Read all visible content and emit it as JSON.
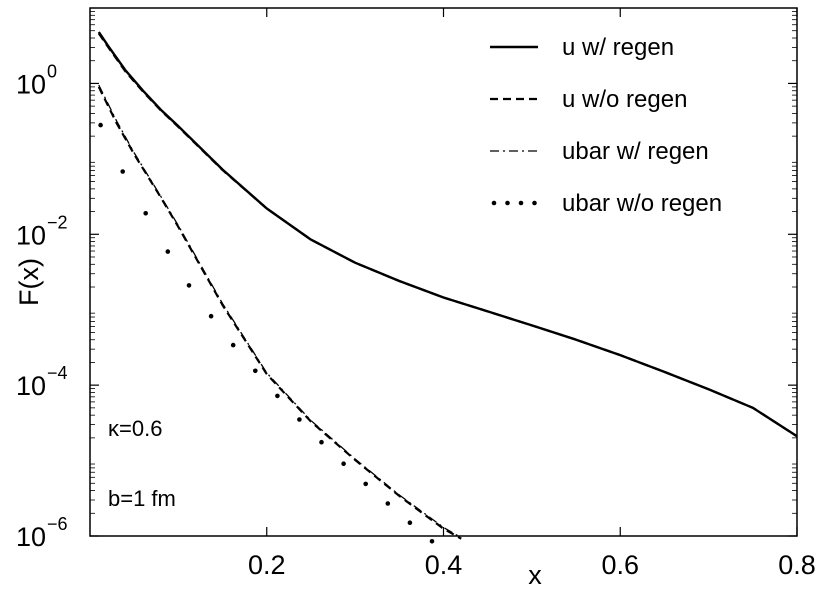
{
  "chart_data": {
    "type": "line",
    "xlabel": "x",
    "ylabel": "F(x)",
    "xlim": [
      0,
      0.8
    ],
    "ylim_log10": [
      -6,
      1
    ],
    "y_scale": "log",
    "grid": false,
    "legend_position": "top-right",
    "x_ticks": [
      {
        "value": 0.2,
        "label": "0.2"
      },
      {
        "value": 0.4,
        "label": "0.4"
      },
      {
        "value": 0.6,
        "label": "0.6"
      },
      {
        "value": 0.8,
        "label": "0.8"
      }
    ],
    "y_ticks": [
      {
        "log10": 0,
        "base": "10",
        "exp": "0"
      },
      {
        "log10": -2,
        "base": "10",
        "exp": "−2"
      },
      {
        "log10": -4,
        "base": "10",
        "exp": "−4"
      },
      {
        "log10": -6,
        "base": "10",
        "exp": "−6"
      }
    ],
    "series": [
      {
        "name": "u w/ regen",
        "style": "solid",
        "x": [
          0.01,
          0.02,
          0.04,
          0.06,
          0.08,
          0.1,
          0.15,
          0.2,
          0.25,
          0.3,
          0.35,
          0.4,
          0.45,
          0.5,
          0.55,
          0.6,
          0.65,
          0.7,
          0.75,
          0.8
        ],
        "y": [
          4.8,
          3.2,
          1.5,
          0.8,
          0.45,
          0.27,
          0.072,
          0.022,
          0.0085,
          0.0042,
          0.0024,
          0.00145,
          0.00095,
          0.00062,
          0.0004,
          0.00025,
          0.00015,
          8.8e-05,
          5e-05,
          2.1e-05
        ]
      },
      {
        "name": "u w/o regen",
        "style": "dashed",
        "x": [
          0.01,
          0.02,
          0.04,
          0.06,
          0.08,
          0.1,
          0.15,
          0.2,
          0.25,
          0.3,
          0.35,
          0.4,
          0.45,
          0.5,
          0.55,
          0.6,
          0.65,
          0.7,
          0.75,
          0.8
        ],
        "y": [
          4.6,
          3.1,
          1.45,
          0.78,
          0.44,
          0.265,
          0.071,
          0.022,
          0.0085,
          0.0042,
          0.0024,
          0.00145,
          0.00095,
          0.00062,
          0.0004,
          0.00025,
          0.00015,
          8.8e-05,
          5e-05,
          2.1e-05
        ]
      },
      {
        "name": "ubar w/ regen",
        "style": "dashdot",
        "x": [
          0.01,
          0.03,
          0.05,
          0.08,
          0.1,
          0.15,
          0.2,
          0.25,
          0.3,
          0.35,
          0.4,
          0.42
        ],
        "y": [
          0.95,
          0.32,
          0.12,
          0.032,
          0.013,
          0.0012,
          0.000145,
          3.4e-05,
          1.05e-05,
          3.5e-06,
          1.3e-06,
          9.5e-07
        ]
      },
      {
        "name": "ubar w/o regen",
        "style": "dashed",
        "x": [
          0.01,
          0.03,
          0.05,
          0.08,
          0.1,
          0.15,
          0.2,
          0.25,
          0.3,
          0.35,
          0.4,
          0.42
        ],
        "y": [
          0.9,
          0.3,
          0.115,
          0.031,
          0.0125,
          0.00115,
          0.00014,
          3.3e-05,
          1.02e-05,
          3.4e-06,
          1.25e-06,
          9.2e-07
        ]
      },
      {
        "name": "ubar w/o regen",
        "style": "dotted",
        "x": [
          0.012,
          0.037,
          0.063,
          0.088,
          0.112,
          0.137,
          0.162,
          0.187,
          0.212,
          0.237,
          0.262,
          0.287,
          0.312,
          0.337,
          0.362,
          0.387
        ],
        "y": [
          0.28,
          0.068,
          0.019,
          0.0059,
          0.0021,
          0.00082,
          0.00034,
          0.000155,
          7.2e-05,
          3.5e-05,
          1.75e-05,
          9.1e-06,
          4.9e-06,
          2.7e-06,
          1.5e-06,
          8.5e-07
        ]
      }
    ],
    "legend": [
      {
        "label": "u w/ regen",
        "style": "solid"
      },
      {
        "label": "u w/o regen",
        "style": "dashed"
      },
      {
        "label": "ubar w/ regen",
        "style": "dashdot"
      },
      {
        "label": "ubar w/o regen",
        "style": "dotted"
      }
    ],
    "annotations": [
      {
        "text": "κ=0.6"
      },
      {
        "text": "b=1 fm"
      }
    ]
  }
}
